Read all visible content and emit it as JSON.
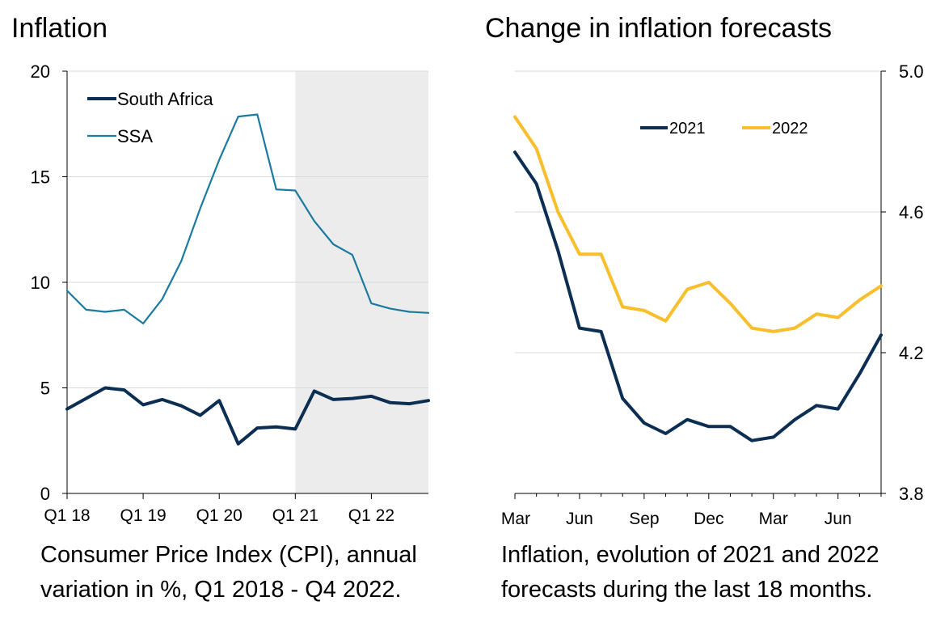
{
  "chart_data": [
    {
      "type": "line",
      "title": "Inflation",
      "caption": [
        "Consumer Price Index (CPI), annual",
        "variation in %, Q1 2018 - Q4 2022."
      ],
      "ylim": [
        0,
        20
      ],
      "yticks": [
        0,
        5,
        10,
        15,
        20
      ],
      "x": [
        "Q1 18",
        "Q2 18",
        "Q3 18",
        "Q4 18",
        "Q1 19",
        "Q2 19",
        "Q3 19",
        "Q4 19",
        "Q1 20",
        "Q2 20",
        "Q3 20",
        "Q4 20",
        "Q1 21",
        "Q2 21",
        "Q3 21",
        "Q4 21",
        "Q1 22",
        "Q2 22",
        "Q3 22",
        "Q4 22"
      ],
      "xtick_labels": [
        "Q1 18",
        "Q1 19",
        "Q1 20",
        "Q1 21",
        "Q1 22"
      ],
      "shaded_region": {
        "from": "Q1 21",
        "to": "Q4 22",
        "color": "#ececec"
      },
      "legend": {
        "position": "top-left"
      },
      "series": [
        {
          "name": "South Africa",
          "color": "#0b2e52",
          "width": 4,
          "values": [
            4.0,
            4.5,
            5.0,
            4.9,
            4.2,
            4.45,
            4.15,
            3.7,
            4.4,
            2.35,
            3.1,
            3.15,
            3.05,
            4.85,
            4.45,
            4.5,
            4.6,
            4.3,
            4.25,
            4.4
          ]
        },
        {
          "name": "SSA",
          "color": "#1a7aa0",
          "width": 2.2,
          "values": [
            9.6,
            8.7,
            8.6,
            8.7,
            8.05,
            9.2,
            11.0,
            13.5,
            15.8,
            17.85,
            17.95,
            14.4,
            14.35,
            12.9,
            11.8,
            11.3,
            9.0,
            8.75,
            8.6,
            8.55
          ]
        }
      ]
    },
    {
      "type": "line",
      "title": "Change in inflation forecasts",
      "caption": [
        "Inflation, evolution of 2021 and 2022",
        "forecasts during the last 18 months."
      ],
      "ylim": [
        3.8,
        5.0
      ],
      "yticks": [
        3.8,
        4.2,
        4.6,
        5.0
      ],
      "ytick_labels": [
        "3.8",
        "4.2",
        "4.6",
        "5.0"
      ],
      "y_axis_side": "right",
      "x_count": 18,
      "xtick_labels": [
        "Mar",
        "Jun",
        "Sep",
        "Dec",
        "Mar",
        "Jun"
      ],
      "xtick_positions": [
        0,
        3,
        6,
        9,
        12,
        15
      ],
      "legend": {
        "position": "top"
      },
      "series": [
        {
          "name": "2021",
          "color": "#0b2e52",
          "width": 4,
          "values": [
            4.77,
            4.68,
            4.49,
            4.27,
            4.26,
            4.07,
            4.0,
            3.97,
            4.01,
            3.99,
            3.99,
            3.95,
            3.96,
            4.01,
            4.05,
            4.04,
            4.14,
            4.25
          ]
        },
        {
          "name": "2022",
          "color": "#f8be2c",
          "width": 4,
          "values": [
            4.87,
            4.78,
            4.6,
            4.48,
            4.48,
            4.33,
            4.32,
            4.29,
            4.38,
            4.4,
            4.34,
            4.27,
            4.26,
            4.27,
            4.31,
            4.3,
            4.35,
            4.39
          ]
        }
      ]
    }
  ]
}
